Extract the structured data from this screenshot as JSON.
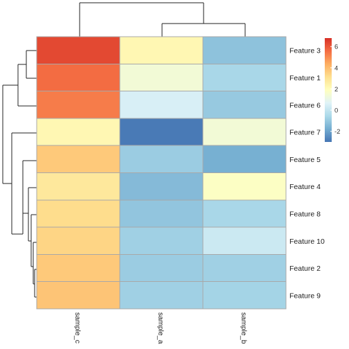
{
  "chart_data": {
    "type": "heatmap",
    "title": "",
    "xlabel": "",
    "ylabel": "",
    "columns": [
      "sample_c",
      "sample_a",
      "sample_b"
    ],
    "rows": [
      "Feature 3",
      "Feature 1",
      "Feature 6",
      "Feature 7",
      "Feature 5",
      "Feature 4",
      "Feature 8",
      "Feature 10",
      "Feature 2",
      "Feature 9"
    ],
    "values": [
      [
        6.3,
        2.2,
        -1.2
      ],
      [
        5.6,
        1.4,
        -0.6
      ],
      [
        5.3,
        0.5,
        -1.0
      ],
      [
        2.2,
        -2.9,
        1.4
      ],
      [
        3.7,
        -0.9,
        -1.7
      ],
      [
        2.8,
        -1.4,
        1.8
      ],
      [
        3.2,
        -1.1,
        -0.6
      ],
      [
        3.4,
        -0.8,
        0.2
      ],
      [
        3.7,
        -0.9,
        -0.8
      ],
      [
        3.8,
        -0.8,
        -0.7
      ]
    ],
    "color_scale": {
      "min": -3.0,
      "max": 6.8,
      "ticks": [
        -2,
        0,
        2,
        4,
        6
      ],
      "stops": [
        {
          "t": 0.0,
          "color": "#4575b4"
        },
        {
          "t": 0.125,
          "color": "#74add1"
        },
        {
          "t": 0.25,
          "color": "#abd9e9"
        },
        {
          "t": 0.375,
          "color": "#e0f3f8"
        },
        {
          "t": 0.5,
          "color": "#ffffbf"
        },
        {
          "t": 0.625,
          "color": "#fee090"
        },
        {
          "t": 0.75,
          "color": "#fdae61"
        },
        {
          "t": 0.875,
          "color": "#f46d43"
        },
        {
          "t": 1.0,
          "color": "#d73027"
        }
      ]
    },
    "legend": "right",
    "row_dendrogram": true,
    "column_dendrogram": true
  }
}
